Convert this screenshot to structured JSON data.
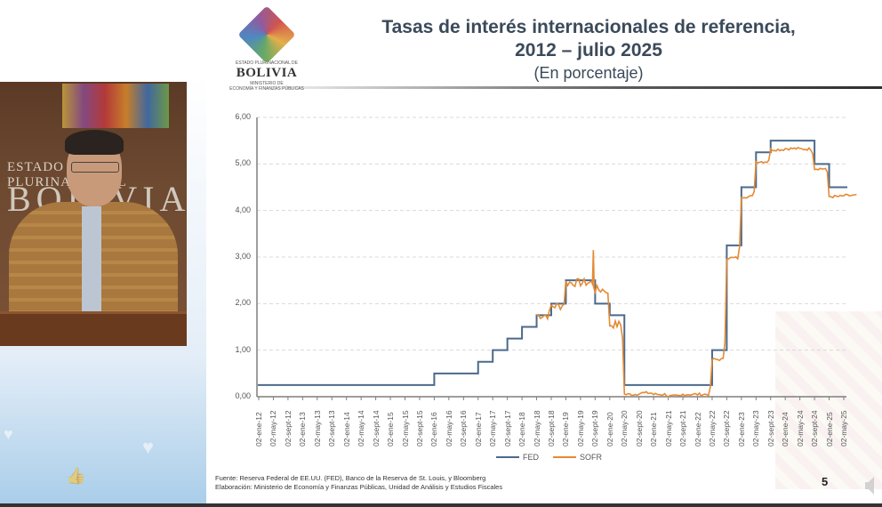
{
  "presenter_panel": {
    "wall_text_line1": "ESTADO PLURINACIONAL",
    "wall_text_line2": "BOLIVIA",
    "social_icons": [
      "heart-icon",
      "heart-icon",
      "thumbs-up-icon"
    ]
  },
  "slide": {
    "logo": {
      "name": "BOLIVIA",
      "top_caption": "ESTADO PLURINACIONAL DE",
      "sub_line1": "MINISTERIO DE",
      "sub_line2": "ECONOMÍA Y FINANZAS PÚBLICAS"
    },
    "title_line1": "Tasas de interés internacionales de referencia,",
    "title_line2": "2012 – julio 2025",
    "subtitle": "(En porcentaje)",
    "source_line1": "Fuente: Reserva Federal de EE.UU. (FED), Banco de la Reserva de St. Louis, y Bloomberg",
    "source_line2": "Elaboración: Ministerio de Economía y Finanzas Públicas, Unidad de Análisis y Estudios Fiscales",
    "page_number": "5"
  },
  "colors": {
    "fed": "#4a6a8c",
    "sofr": "#e58a33",
    "title": "#3b4a5a",
    "axis": "#7f7f7f",
    "grid": "#d9d9d9"
  },
  "chart_data": {
    "type": "line",
    "title": "Tasas de interés internacionales de referencia, 2012 – julio 2025",
    "subtitle": "(En porcentaje)",
    "xlabel": "",
    "ylabel": "",
    "ylim": [
      0,
      6
    ],
    "yticks": [
      "0,00",
      "1,00",
      "2,00",
      "3,00",
      "4,00",
      "5,00",
      "6,00"
    ],
    "grid": "horizontal dashed",
    "legend_position": "bottom",
    "legend": [
      "FED",
      "SOFR"
    ],
    "categories": [
      "02-ene-12",
      "02-may-12",
      "02-sept-12",
      "02-ene-13",
      "02-may-13",
      "02-sept-13",
      "02-ene-14",
      "02-may-14",
      "02-sept-14",
      "02-ene-15",
      "02-may-15",
      "02-sept-15",
      "02-ene-16",
      "02-may-16",
      "02-sept-16",
      "02-ene-17",
      "02-may-17",
      "02-sept-17",
      "02-ene-18",
      "02-may-18",
      "02-sept-18",
      "02-ene-19",
      "02-may-19",
      "02-sept-19",
      "02-ene-20",
      "02-may-20",
      "02-sept-20",
      "02-ene-21",
      "02-may-21",
      "02-sept-21",
      "02-ene-22",
      "02-may-22",
      "02-sept-22",
      "02-ene-23",
      "02-may-23",
      "02-sept-23",
      "02-ene-24",
      "02-may-24",
      "02-sept-24",
      "02-ene-25",
      "02-may-25"
    ],
    "series": [
      {
        "name": "FED",
        "note": "upper bound of target range, step function",
        "values": [
          0.25,
          0.25,
          0.25,
          0.25,
          0.25,
          0.25,
          0.25,
          0.25,
          0.25,
          0.25,
          0.25,
          0.25,
          0.5,
          0.5,
          0.5,
          0.75,
          1.0,
          1.25,
          1.5,
          1.75,
          2.0,
          2.5,
          2.5,
          2.0,
          1.75,
          0.25,
          0.25,
          0.25,
          0.25,
          0.25,
          0.25,
          1.0,
          3.25,
          4.5,
          5.25,
          5.5,
          5.5,
          5.5,
          5.0,
          4.5,
          4.5
        ]
      },
      {
        "name": "SOFR",
        "note": "daily series, starts April 2018",
        "values": [
          null,
          null,
          null,
          null,
          null,
          null,
          null,
          null,
          null,
          null,
          null,
          null,
          null,
          null,
          null,
          null,
          null,
          null,
          null,
          1.75,
          1.95,
          2.45,
          2.45,
          2.3,
          1.55,
          0.05,
          0.08,
          0.05,
          0.01,
          0.05,
          0.05,
          0.8,
          2.98,
          4.3,
          5.05,
          5.31,
          5.33,
          5.32,
          4.9,
          4.3,
          4.32
        ],
        "peak_annotation": {
          "date": "sept-19",
          "value": 3.15
        }
      }
    ]
  }
}
